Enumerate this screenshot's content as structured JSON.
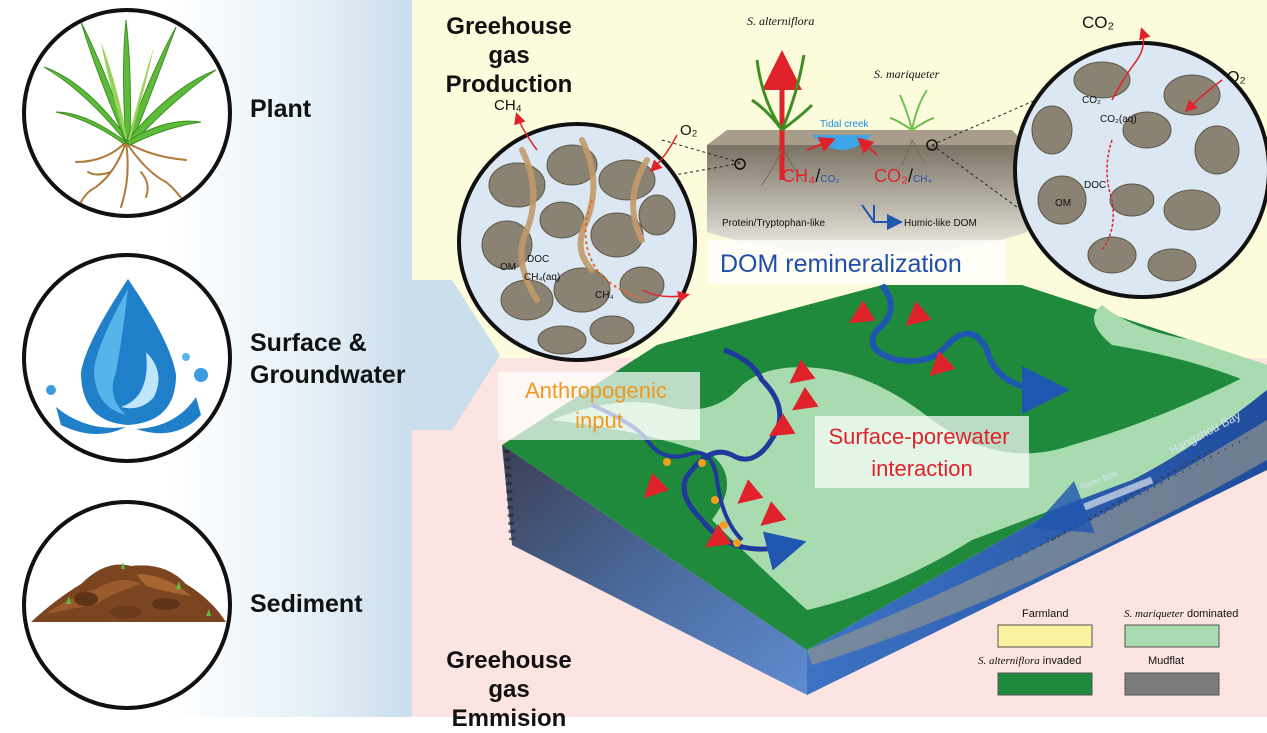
{
  "left_panel": {
    "items": [
      {
        "label": "Plant",
        "icon": "plant-icon"
      },
      {
        "label": "Surface &",
        "label2": "Groundwater",
        "icon": "water-drop-icon"
      },
      {
        "label": "Sediment",
        "icon": "soil-pile-icon"
      }
    ]
  },
  "diagram": {
    "top_title": [
      "Greehouse gas",
      "Production"
    ],
    "bottom_title": [
      "Greehouse gas",
      "Emmision"
    ],
    "plants": {
      "s_alterniflora": "S. alterniflora",
      "s_mariqueter": "S. mariqueter"
    },
    "tidal_creek": "Tidal creek",
    "gas_left": {
      "main": "CH₄",
      "sep": "/",
      "minor": "CO₂"
    },
    "gas_right": {
      "main": "CO₂",
      "sep": "/",
      "minor": "CH₄"
    },
    "dom_path": {
      "from": "Protein/Tryptophan-like",
      "to": "Humic-like DOM"
    },
    "left_zoom": {
      "ch4_top": "CH₄",
      "o2": "O₂",
      "om": "OM",
      "doc": "DOC",
      "ch4aq": "CH₄(aq)",
      "ch4_bottom": "CH₄"
    },
    "right_zoom": {
      "co2_top": "CO₂",
      "o2": "O₂",
      "co2": "CO₂",
      "co2aq": "CO₂(aq)",
      "doc": "DOC",
      "om": "OM"
    },
    "dom_remineralization": "DOM remineralization",
    "anthropogenic": [
      "Anthropogenic",
      "input"
    ],
    "surface_porewater": [
      "Surface-porewater",
      "interaction"
    ],
    "river_flow": "River flow",
    "hangzhou_bay": "Hangzhou Bay"
  },
  "legend": {
    "items": [
      {
        "label": "Farmland",
        "color": "#f9f3a0"
      },
      {
        "label": "S. mariqueter",
        "suffix": " dominated",
        "color": "#a8dcb0"
      },
      {
        "label": "S. alterniflora",
        "suffix": " invaded",
        "color": "#1f8a3c"
      },
      {
        "label": "Mudflat",
        "color": "#7b7b7b"
      }
    ]
  },
  "colors": {
    "top_band": "#fcfbdc",
    "bottom_band": "#fbe4e1",
    "red_label": "#e0232a",
    "orange_label": "#ef9a1f",
    "blue_label": "#1f4fa8"
  }
}
